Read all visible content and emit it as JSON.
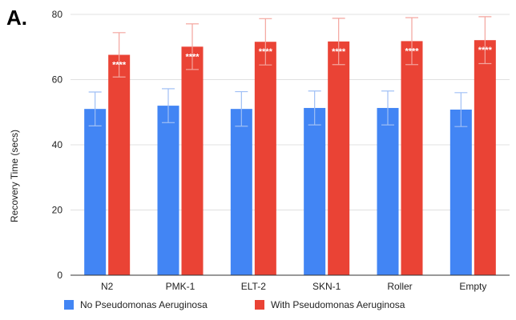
{
  "panel_label": "A.",
  "colors": {
    "no_pa": "#4285f4",
    "with_pa": "#ea4335",
    "grid": "#e0e0e0",
    "axis": "#333333"
  },
  "chart_data": {
    "type": "bar",
    "ylabel": "Recovery Time (secs)",
    "xlabel": "",
    "ylim": [
      0,
      80
    ],
    "yticks": [
      0,
      20,
      40,
      60,
      80
    ],
    "grid": true,
    "legend_position": "bottom",
    "categories": [
      "N2",
      "PMK-1",
      "ELT-2",
      "SKN-1",
      "Roller",
      "Empty"
    ],
    "series": [
      {
        "name": "No Pseudomonas Aeruginosa",
        "color": "#4285f4",
        "values": [
          51,
          52,
          51,
          51.3,
          51.3,
          50.8
        ],
        "error": [
          5.2,
          5.2,
          5.3,
          5.2,
          5.2,
          5.2
        ],
        "annotations": [
          "",
          "",
          "",
          "",
          "",
          ""
        ]
      },
      {
        "name": "With Pseudomonas Aeruginosa",
        "color": "#ea4335",
        "values": [
          67.6,
          70.1,
          71.6,
          71.7,
          71.8,
          72.1
        ],
        "error": [
          6.8,
          7.0,
          7.1,
          7.1,
          7.2,
          7.2
        ],
        "annotations": [
          "****",
          "****",
          "****",
          "****",
          "****",
          "****"
        ]
      }
    ]
  }
}
